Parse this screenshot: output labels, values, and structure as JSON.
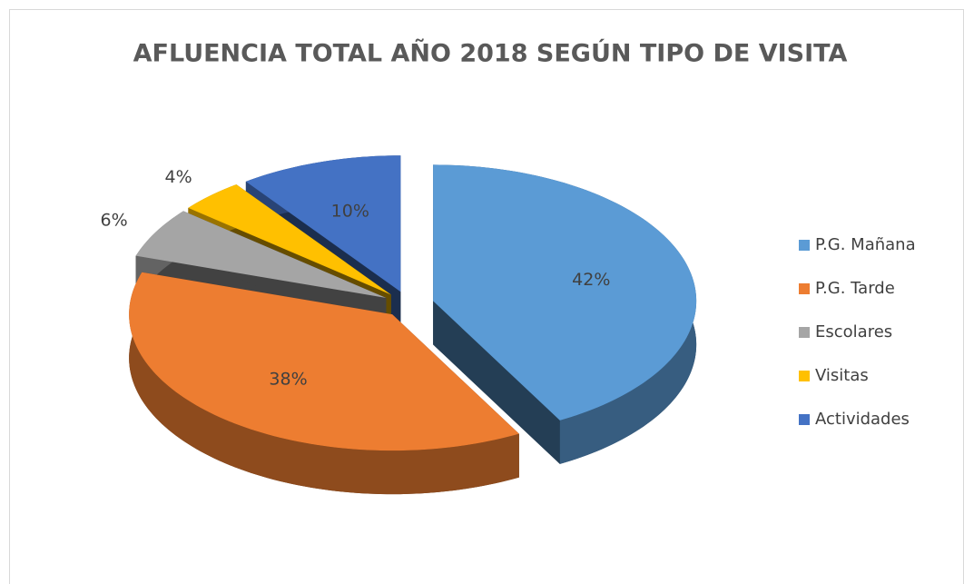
{
  "chart_data": {
    "type": "pie",
    "title": "AFLUENCIA TOTAL AÑO 2018 SEGÚN TIPO DE VISITA",
    "categories": [
      "P.G. Mañana",
      "P.G. Tarde",
      "Escolares",
      "Visitas",
      "Actividades"
    ],
    "values": [
      42,
      38,
      6,
      4,
      10
    ],
    "value_labels": [
      "42%",
      "38%",
      "6%",
      "4%",
      "10%"
    ],
    "colors": [
      "#5b9bd5",
      "#ed7d31",
      "#a5a5a5",
      "#ffc000",
      "#4472c4"
    ],
    "legend": "right"
  }
}
